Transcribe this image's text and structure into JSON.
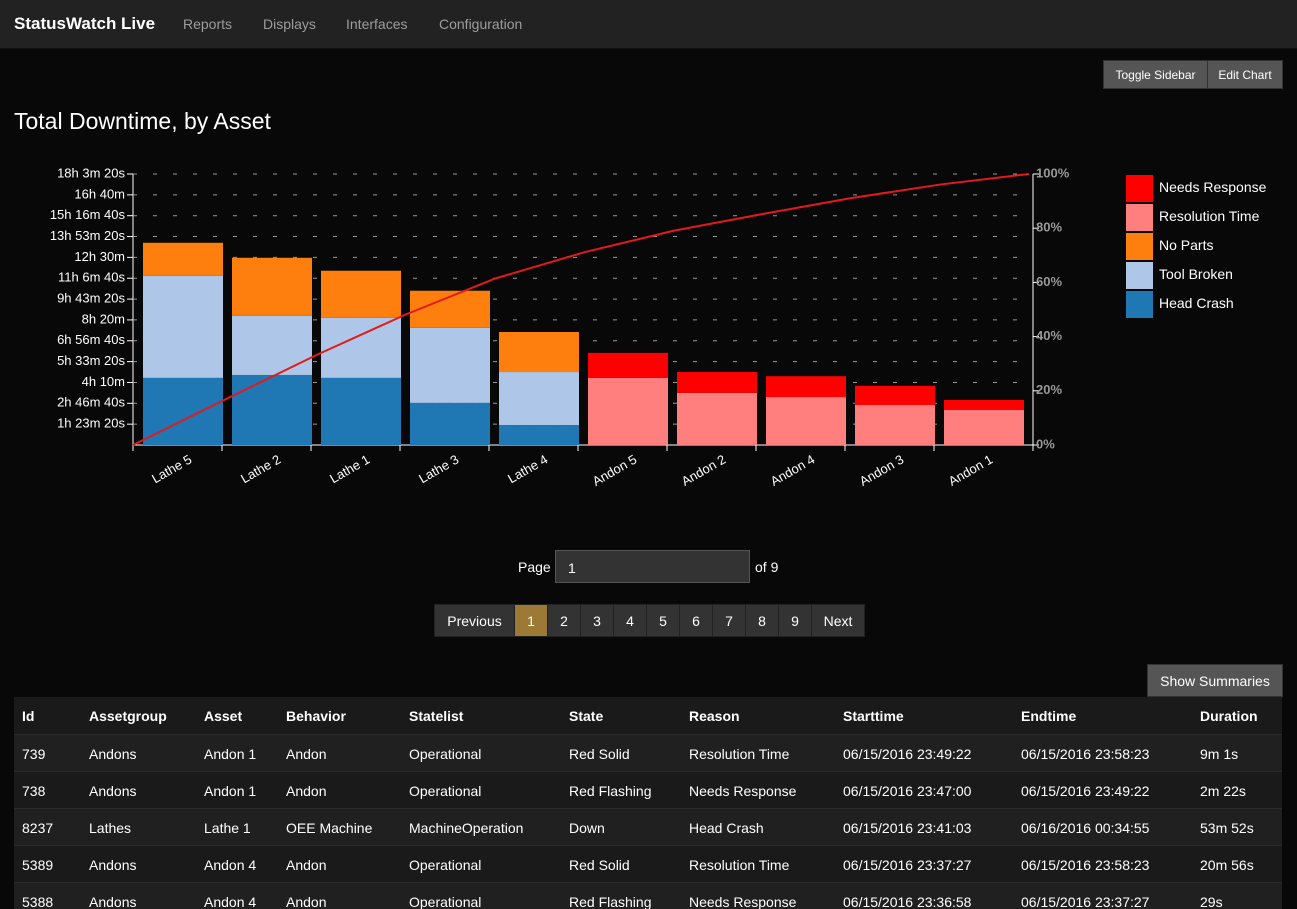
{
  "nav": {
    "brand": "StatusWatch Live",
    "links": [
      "Reports",
      "Displays",
      "Interfaces",
      "Configuration"
    ]
  },
  "buttons": {
    "toggle_sidebar": "Toggle Sidebar",
    "edit_chart": "Edit Chart",
    "show_summaries": "Show Summaries"
  },
  "chart_data": {
    "type": "bar",
    "title": "Total Downtime, by Asset",
    "stacked": true,
    "grid": true,
    "legend": "right",
    "categories": [
      "Lathe 5",
      "Lathe 2",
      "Lathe 1",
      "Lathe 3",
      "Lathe 4",
      "Andon 5",
      "Andon 2",
      "Andon 4",
      "Andon 3",
      "Andon 1"
    ],
    "series": [
      {
        "name": "Head Crash",
        "color": "#1f77b4",
        "values": [
          16100,
          16800,
          16100,
          10100,
          4800,
          null,
          null,
          null,
          null,
          null
        ]
      },
      {
        "name": "Tool Broken",
        "color": "#aec7e8",
        "values": [
          24500,
          14200,
          14400,
          18000,
          12700,
          null,
          null,
          null,
          null,
          null
        ]
      },
      {
        "name": "No Parts",
        "color": "#ff7f0e",
        "values": [
          7900,
          13900,
          11300,
          8900,
          9600,
          null,
          null,
          null,
          null,
          null
        ]
      },
      {
        "name": "Resolution Time",
        "color": "#ff7f7f",
        "values": [
          null,
          null,
          null,
          null,
          null,
          16100,
          12500,
          11500,
          9600,
          8400
        ]
      },
      {
        "name": "Needs Response",
        "color": "#ff0000",
        "values": [
          null,
          null,
          null,
          null,
          null,
          6000,
          5000,
          5000,
          4600,
          2400
        ]
      }
    ],
    "line": {
      "color": "#e31a1c",
      "axis": "y2",
      "values": [
        17.3,
        33.3,
        48.2,
        61.4,
        71.1,
        79.0,
        85.2,
        91.1,
        96.1,
        100
      ]
    },
    "ylim": [
      0,
      65000
    ],
    "yticks": [
      {
        "value": 5000,
        "label": "1h 23m 20s"
      },
      {
        "value": 10000,
        "label": "2h 46m 40s"
      },
      {
        "value": 15000,
        "label": "4h 10m"
      },
      {
        "value": 20000,
        "label": "5h 33m 20s"
      },
      {
        "value": 25000,
        "label": "6h 56m 40s"
      },
      {
        "value": 30000,
        "label": "8h 20m"
      },
      {
        "value": 35000,
        "label": "9h 43m 20s"
      },
      {
        "value": 40000,
        "label": "11h 6m 40s"
      },
      {
        "value": 45000,
        "label": "12h 30m"
      },
      {
        "value": 50000,
        "label": "13h 53m 20s"
      },
      {
        "value": 55000,
        "label": "15h 16m 40s"
      },
      {
        "value": 60000,
        "label": "16h 40m"
      },
      {
        "value": 65000,
        "label": "18h 3m 20s"
      }
    ],
    "y2lim": [
      0,
      100
    ],
    "y2ticks": [
      {
        "value": 0,
        "label": "0%"
      },
      {
        "value": 20,
        "label": "20%"
      },
      {
        "value": 40,
        "label": "40%"
      },
      {
        "value": 60,
        "label": "60%"
      },
      {
        "value": 80,
        "label": "80%"
      },
      {
        "value": 100,
        "label": "100%"
      }
    ]
  },
  "pager": {
    "page_label": "Page",
    "input": "1",
    "of_label": "of 9",
    "previous": "Previous",
    "next": "Next",
    "pages": [
      1,
      2,
      3,
      4,
      5,
      6,
      7,
      8,
      9
    ],
    "current": 1
  },
  "table": {
    "headers": [
      "Id",
      "Assetgroup",
      "Asset",
      "Behavior",
      "Statelist",
      "State",
      "Reason",
      "Starttime",
      "Endtime",
      "Duration"
    ],
    "rows": [
      [
        "739",
        "Andons",
        "Andon 1",
        "Andon",
        "Operational",
        "Red Solid",
        "Resolution Time",
        "06/15/2016 23:49:22",
        "06/15/2016 23:58:23",
        "9m 1s"
      ],
      [
        "738",
        "Andons",
        "Andon 1",
        "Andon",
        "Operational",
        "Red Flashing",
        "Needs Response",
        "06/15/2016 23:47:00",
        "06/15/2016 23:49:22",
        "2m 22s"
      ],
      [
        "8237",
        "Lathes",
        "Lathe 1",
        "OEE Machine",
        "MachineOperation",
        "Down",
        "Head Crash",
        "06/15/2016 23:41:03",
        "06/16/2016 00:34:55",
        "53m 52s"
      ],
      [
        "5389",
        "Andons",
        "Andon 4",
        "Andon",
        "Operational",
        "Red Solid",
        "Resolution Time",
        "06/15/2016 23:37:27",
        "06/15/2016 23:58:23",
        "20m 56s"
      ],
      [
        "5388",
        "Andons",
        "Andon 4",
        "Andon",
        "Operational",
        "Red Flashing",
        "Needs Response",
        "06/15/2016 23:36:58",
        "06/15/2016 23:37:27",
        "29s"
      ]
    ]
  }
}
